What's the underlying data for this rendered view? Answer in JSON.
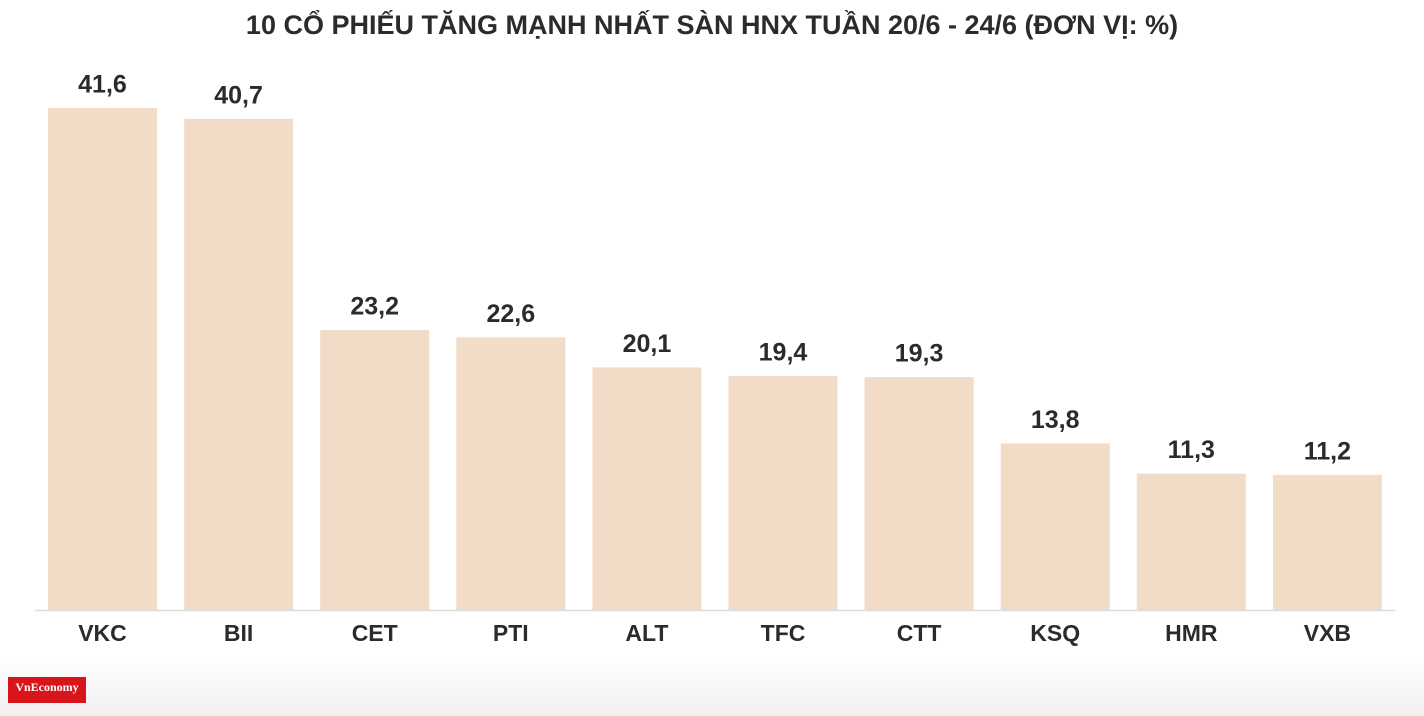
{
  "chart_data": {
    "type": "bar",
    "title": "10 CỔ PHIẾU TĂNG MẠNH NHẤT SÀN HNX TUẦN 20/6 - 24/6 (ĐƠN VỊ: %)",
    "categories": [
      "VKC",
      "BII",
      "CET",
      "PTI",
      "ALT",
      "TFC",
      "CTT",
      "KSQ",
      "HMR",
      "VXB"
    ],
    "values": [
      41.6,
      40.7,
      23.2,
      22.6,
      20.1,
      19.4,
      19.3,
      13.8,
      11.3,
      11.2
    ],
    "value_labels": [
      "41,6",
      "40,7",
      "23,2",
      "22,6",
      "20,1",
      "19,4",
      "19,3",
      "13,8",
      "11,3",
      "11,2"
    ],
    "color": "#f2dcc8"
  },
  "logo": "VnEconomy"
}
